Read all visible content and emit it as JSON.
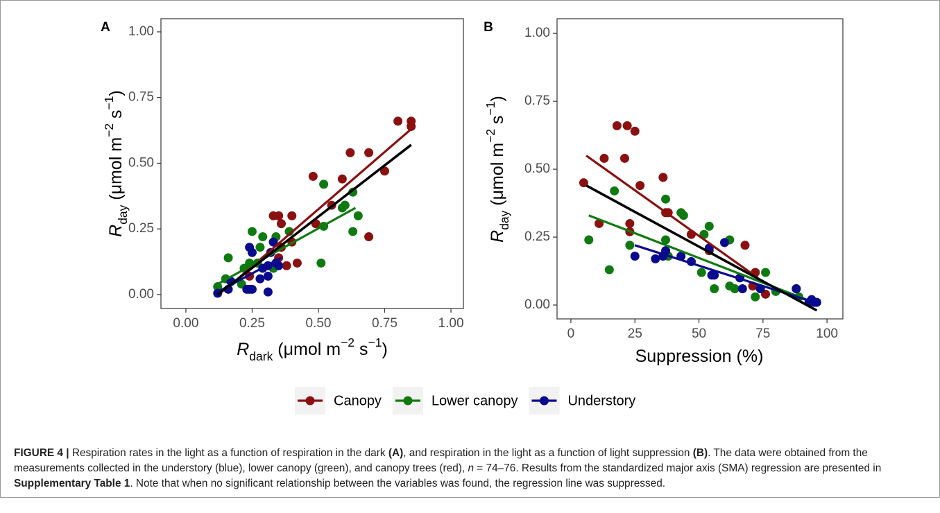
{
  "chart_data": [
    {
      "type": "scatter",
      "panel_label": "A",
      "x_label": [
        {
          "text": "R",
          "style": "italic"
        },
        {
          "text": "dark",
          "style": "sub"
        },
        {
          "text": " (μmol m"
        },
        {
          "text": "−2",
          "style": "sup"
        },
        {
          "text": " s"
        },
        {
          "text": "−1",
          "style": "sup"
        },
        {
          "text": ")"
        }
      ],
      "y_label": [
        {
          "text": "R",
          "style": "italic"
        },
        {
          "text": "day",
          "style": "sub"
        },
        {
          "text": " (μmol m"
        },
        {
          "text": "−2",
          "style": "sup"
        },
        {
          "text": " s"
        },
        {
          "text": "−1",
          "style": "sup"
        },
        {
          "text": ")"
        }
      ],
      "xlim": [
        -0.094,
        1.047
      ],
      "ylim": [
        -0.053,
        1.05
      ],
      "xticks": [
        {
          "value": 0,
          "label": "0.00"
        },
        {
          "value": 0.25,
          "label": "0.25"
        },
        {
          "value": 0.5,
          "label": "0.50"
        },
        {
          "value": 0.75,
          "label": "0.75"
        },
        {
          "value": 1,
          "label": "1.00"
        }
      ],
      "yticks": [
        {
          "value": 0,
          "label": "0.00"
        },
        {
          "value": 0.25,
          "label": "0.25"
        },
        {
          "value": 0.5,
          "label": "0.50"
        },
        {
          "value": 0.75,
          "label": "0.75"
        },
        {
          "value": 1,
          "label": "1.00"
        }
      ],
      "series": [
        {
          "name": "Canopy",
          "color": "#8b1010",
          "x": [
            0.8,
            0.85,
            0.85,
            0.75,
            0.69,
            0.62,
            0.59,
            0.48,
            0.55,
            0.6,
            0.49,
            0.4,
            0.35,
            0.36,
            0.33,
            0.4,
            0.42,
            0.38,
            0.36,
            0.35,
            0.34,
            0.69,
            0.24,
            0.17
          ],
          "y": [
            0.66,
            0.66,
            0.64,
            0.47,
            0.54,
            0.54,
            0.44,
            0.45,
            0.34,
            0.34,
            0.27,
            0.3,
            0.3,
            0.27,
            0.3,
            0.2,
            0.12,
            0.11,
            0.18,
            0.14,
            0.12,
            0.22,
            0.07,
            0.05
          ],
          "fit": {
            "x": [
              0.15,
              0.85
            ],
            "y": [
              0.02,
              0.63
            ]
          }
        },
        {
          "name": "Lower canopy",
          "color": "#0f7a0f",
          "x": [
            0.52,
            0.63,
            0.59,
            0.6,
            0.65,
            0.52,
            0.63,
            0.51,
            0.39,
            0.34,
            0.29,
            0.25,
            0.28,
            0.24,
            0.27,
            0.16,
            0.12,
            0.15,
            0.22,
            0.21,
            0.33
          ],
          "y": [
            0.42,
            0.39,
            0.33,
            0.34,
            0.3,
            0.26,
            0.24,
            0.12,
            0.24,
            0.22,
            0.22,
            0.24,
            0.18,
            0.12,
            0.12,
            0.14,
            0.03,
            0.06,
            0.1,
            0.04,
            0.1
          ],
          "fit": {
            "x": [
              0.12,
              0.64
            ],
            "y": [
              0.04,
              0.33
            ]
          }
        },
        {
          "name": "Understory",
          "color": "#0a0a8f",
          "x": [
            0.12,
            0.16,
            0.17,
            0.23,
            0.24,
            0.25,
            0.24,
            0.25,
            0.28,
            0.29,
            0.31,
            0.32,
            0.33,
            0.34,
            0.35,
            0.31,
            0.31
          ],
          "y": [
            0.005,
            0.02,
            0.05,
            0.02,
            0.02,
            0.02,
            0.18,
            0.16,
            0.06,
            0.1,
            0.11,
            0.16,
            0.2,
            0.12,
            0.11,
            0.01,
            0.07
          ],
          "fit": {
            "x": [
              0.12,
              0.36
            ],
            "y": [
              0.01,
              0.14
            ]
          }
        }
      ],
      "overall_fit": {
        "color": "#000000",
        "x": [
          0.12,
          0.85
        ],
        "y": [
          0.0,
          0.57
        ]
      }
    },
    {
      "type": "scatter",
      "panel_label": "B",
      "x_label": [
        {
          "text": "Suppression (%)"
        }
      ],
      "y_label": [
        {
          "text": "R",
          "style": "italic"
        },
        {
          "text": "day",
          "style": "sub"
        },
        {
          "text": " (μmol m"
        },
        {
          "text": "−2",
          "style": "sup"
        },
        {
          "text": " s"
        },
        {
          "text": "−1",
          "style": "sup"
        },
        {
          "text": ")"
        }
      ],
      "xlim": [
        -5.4,
        106.2
      ],
      "ylim": [
        -0.051,
        1.054
      ],
      "xticks": [
        0,
        25,
        50,
        75,
        100
      ],
      "yticks": [
        {
          "value": 0,
          "label": "0.00"
        },
        {
          "value": 0.25,
          "label": "0.25"
        },
        {
          "value": 0.5,
          "label": "0.50"
        },
        {
          "value": 0.75,
          "label": "0.75"
        },
        {
          "value": 1,
          "label": "1.00"
        }
      ],
      "series": [
        {
          "name": "Canopy",
          "color": "#8b1010",
          "x": [
            5,
            13,
            18,
            22,
            25,
            21,
            27,
            36,
            37,
            38,
            23,
            11,
            23,
            47,
            54,
            68,
            72,
            71,
            76
          ],
          "y": [
            0.45,
            0.54,
            0.66,
            0.66,
            0.64,
            0.54,
            0.44,
            0.47,
            0.34,
            0.34,
            0.3,
            0.3,
            0.27,
            0.26,
            0.2,
            0.22,
            0.12,
            0.07,
            0.04
          ],
          "fit": {
            "x": [
              6,
              73
            ],
            "y": [
              0.55,
              0.1
            ]
          }
        },
        {
          "name": "Lower canopy",
          "color": "#0f7a0f",
          "x": [
            7,
            15,
            17,
            23,
            37,
            43,
            44,
            54,
            52,
            62,
            37,
            38,
            51,
            56,
            62,
            64,
            72,
            76,
            80,
            89,
            88
          ],
          "y": [
            0.24,
            0.13,
            0.42,
            0.22,
            0.39,
            0.34,
            0.33,
            0.29,
            0.26,
            0.24,
            0.24,
            0.18,
            0.12,
            0.06,
            0.07,
            0.06,
            0.03,
            0.12,
            0.05,
            0.03,
            0.06
          ],
          "fit": {
            "x": [
              7,
              92
            ],
            "y": [
              0.33,
              0.02
            ]
          }
        },
        {
          "name": "Understory",
          "color": "#0a0a8f",
          "x": [
            25,
            33,
            36,
            37,
            43,
            47,
            54,
            55,
            56,
            60,
            66,
            67,
            74,
            88,
            93,
            94,
            95,
            96
          ],
          "y": [
            0.18,
            0.17,
            0.18,
            0.2,
            0.18,
            0.16,
            0.21,
            0.11,
            0.11,
            0.23,
            0.1,
            0.06,
            0.06,
            0.06,
            0.01,
            0.02,
            0.01,
            0.01
          ],
          "fit": {
            "x": [
              25,
              95
            ],
            "y": [
              0.22,
              0.01
            ]
          }
        }
      ],
      "overall_fit": {
        "color": "#000000",
        "x": [
          6,
          96
        ],
        "y": [
          0.44,
          -0.02
        ]
      }
    }
  ],
  "caption": [
    {
      "text": "FIGURE 4 |",
      "style": "bold"
    },
    {
      "text": " Respiration rates in the light as a function of respiration in the dark "
    },
    {
      "text": "(A)",
      "style": "bold"
    },
    {
      "text": ", and respiration in the light as a function of light suppression "
    },
    {
      "text": "(B)",
      "style": "bold"
    },
    {
      "text": ". The data were obtained from the measurements collected in the understory (blue), lower canopy (green), and canopy trees (red), "
    },
    {
      "text": "n",
      "style": "italic"
    },
    {
      "text": " = 74–76. Results from the standardized major axis (SMA) regression are presented in "
    },
    {
      "text": "Supplementary Table 1",
      "style": "bold"
    },
    {
      "text": ". Note that when no significant relationship between the variables was found, the regression line was suppressed."
    }
  ]
}
